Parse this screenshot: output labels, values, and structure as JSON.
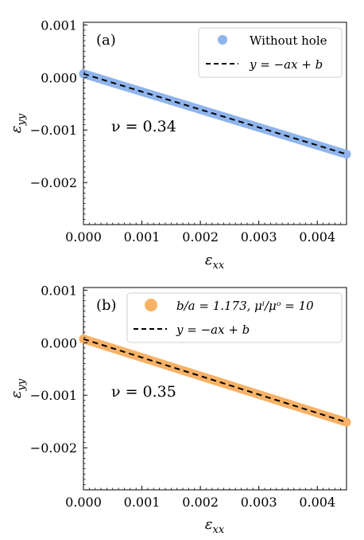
{
  "chart_data": [
    {
      "type": "scatter",
      "panel_label": "(a)",
      "xlabel": "ε_xx",
      "ylabel": "ε_yy",
      "xlim": [
        0.0,
        0.0045
      ],
      "ylim": [
        -0.0028,
        0.00105
      ],
      "x_ticks": [
        "0.000",
        "0.001",
        "0.002",
        "0.003",
        "0.004"
      ],
      "y_ticks": [
        "0.001",
        "0.000",
        "−0.001",
        "−0.002"
      ],
      "x_tick_values": [
        0.0,
        0.001,
        0.002,
        0.003,
        0.004
      ],
      "y_tick_values": [
        0.001,
        0.0,
        -0.001,
        -0.002
      ],
      "annotation": "ν = 0.34",
      "legend_position": "top-right",
      "series": [
        {
          "name": "Without hole",
          "kind": "points",
          "color": "#8fb4ec",
          "x": [
            0.0,
            0.00025,
            0.0005,
            0.00075,
            0.001,
            0.00125,
            0.0015,
            0.00175,
            0.002,
            0.00225,
            0.0025,
            0.00275,
            0.003,
            0.00325,
            0.0035,
            0.00375,
            0.004,
            0.00425,
            0.0045
          ],
          "y": [
            7e-05,
            -1.5e-05,
            -0.0001,
            -0.000185,
            -0.00027,
            -0.000355,
            -0.00044,
            -0.000525,
            -0.00061,
            -0.000695,
            -0.00078,
            -0.000865,
            -0.00095,
            -0.001035,
            -0.00112,
            -0.001205,
            -0.00129,
            -0.001375,
            -0.00146
          ]
        },
        {
          "name": "y = −ax + b",
          "kind": "dashed-line",
          "color": "#000000",
          "x": [
            0.0,
            0.0045
          ],
          "y": [
            7e-05,
            -0.00146
          ]
        }
      ]
    },
    {
      "type": "scatter",
      "panel_label": "(b)",
      "xlabel": "ε_xx",
      "ylabel": "ε_yy",
      "xlim": [
        0.0,
        0.0045
      ],
      "ylim": [
        -0.0028,
        0.00105
      ],
      "x_ticks": [
        "0.000",
        "0.001",
        "0.002",
        "0.003",
        "0.004"
      ],
      "y_ticks": [
        "0.001",
        "0.000",
        "−0.001",
        "−0.002"
      ],
      "x_tick_values": [
        0.0,
        0.001,
        0.002,
        0.003,
        0.004
      ],
      "y_tick_values": [
        0.001,
        0.0,
        -0.001,
        -0.002
      ],
      "annotation": "ν = 0.35",
      "legend_position": "top-right",
      "series": [
        {
          "name": "b/a = 1.173,  μⁱ/μᵒ = 10",
          "kind": "points",
          "color": "#f7b266",
          "x": [
            0.0,
            0.00025,
            0.0005,
            0.00075,
            0.001,
            0.00125,
            0.0015,
            0.00175,
            0.002,
            0.00225,
            0.0025,
            0.00275,
            0.003,
            0.00325,
            0.0035,
            0.00375,
            0.004,
            0.00425,
            0.0045
          ],
          "y": [
            7e-05,
            -1.8e-05,
            -0.000106,
            -0.000194,
            -0.000282,
            -0.00037,
            -0.000458,
            -0.000546,
            -0.000634,
            -0.000722,
            -0.00081,
            -0.000898,
            -0.000986,
            -0.001074,
            -0.001162,
            -0.00125,
            -0.001338,
            -0.001426,
            -0.001514
          ]
        },
        {
          "name": "y = −ax + b",
          "kind": "dashed-line",
          "color": "#000000",
          "x": [
            0.0,
            0.0045
          ],
          "y": [
            7e-05,
            -0.001514
          ]
        }
      ]
    }
  ]
}
